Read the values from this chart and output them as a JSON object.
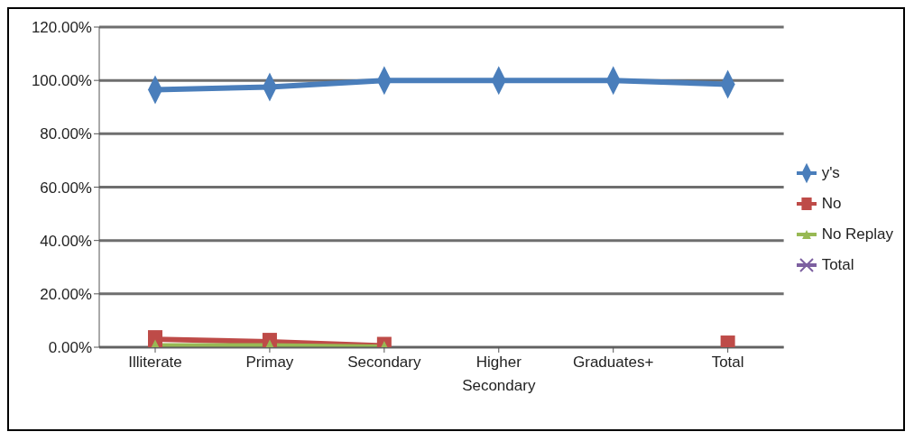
{
  "chart_data": {
    "type": "line",
    "categories": [
      "Illiterate",
      "Primay",
      "Secondary",
      "Higher Secondary",
      "Graduates+",
      "Total"
    ],
    "series": [
      {
        "name": "y's",
        "color": "#4a7ebb",
        "marker": "diamond",
        "values": [
          96.5,
          97.5,
          100,
          100,
          100,
          98.5
        ]
      },
      {
        "name": "No",
        "color": "#be4b48",
        "marker": "square",
        "values": [
          3,
          2,
          0.5,
          null,
          null,
          1
        ]
      },
      {
        "name": "No Replay",
        "color": "#98b954",
        "marker": "triangle",
        "values": [
          0.5,
          0.5,
          0,
          null,
          null,
          null
        ]
      },
      {
        "name": "Total",
        "color": "#7d60a0",
        "marker": "cross",
        "values": [
          null,
          null,
          null,
          null,
          null,
          null
        ]
      }
    ],
    "ylim": [
      0,
      120
    ],
    "yticks": [
      {
        "value": 0,
        "label": "0.00%"
      },
      {
        "value": 20,
        "label": "20.00%"
      },
      {
        "value": 40,
        "label": "40.00%"
      },
      {
        "value": 60,
        "label": "60.00%"
      },
      {
        "value": 80,
        "label": "80.00%"
      },
      {
        "value": 100,
        "label": "100.00%"
      },
      {
        "value": 120,
        "label": "120.00%"
      }
    ],
    "grid": "y",
    "legend": "right"
  }
}
